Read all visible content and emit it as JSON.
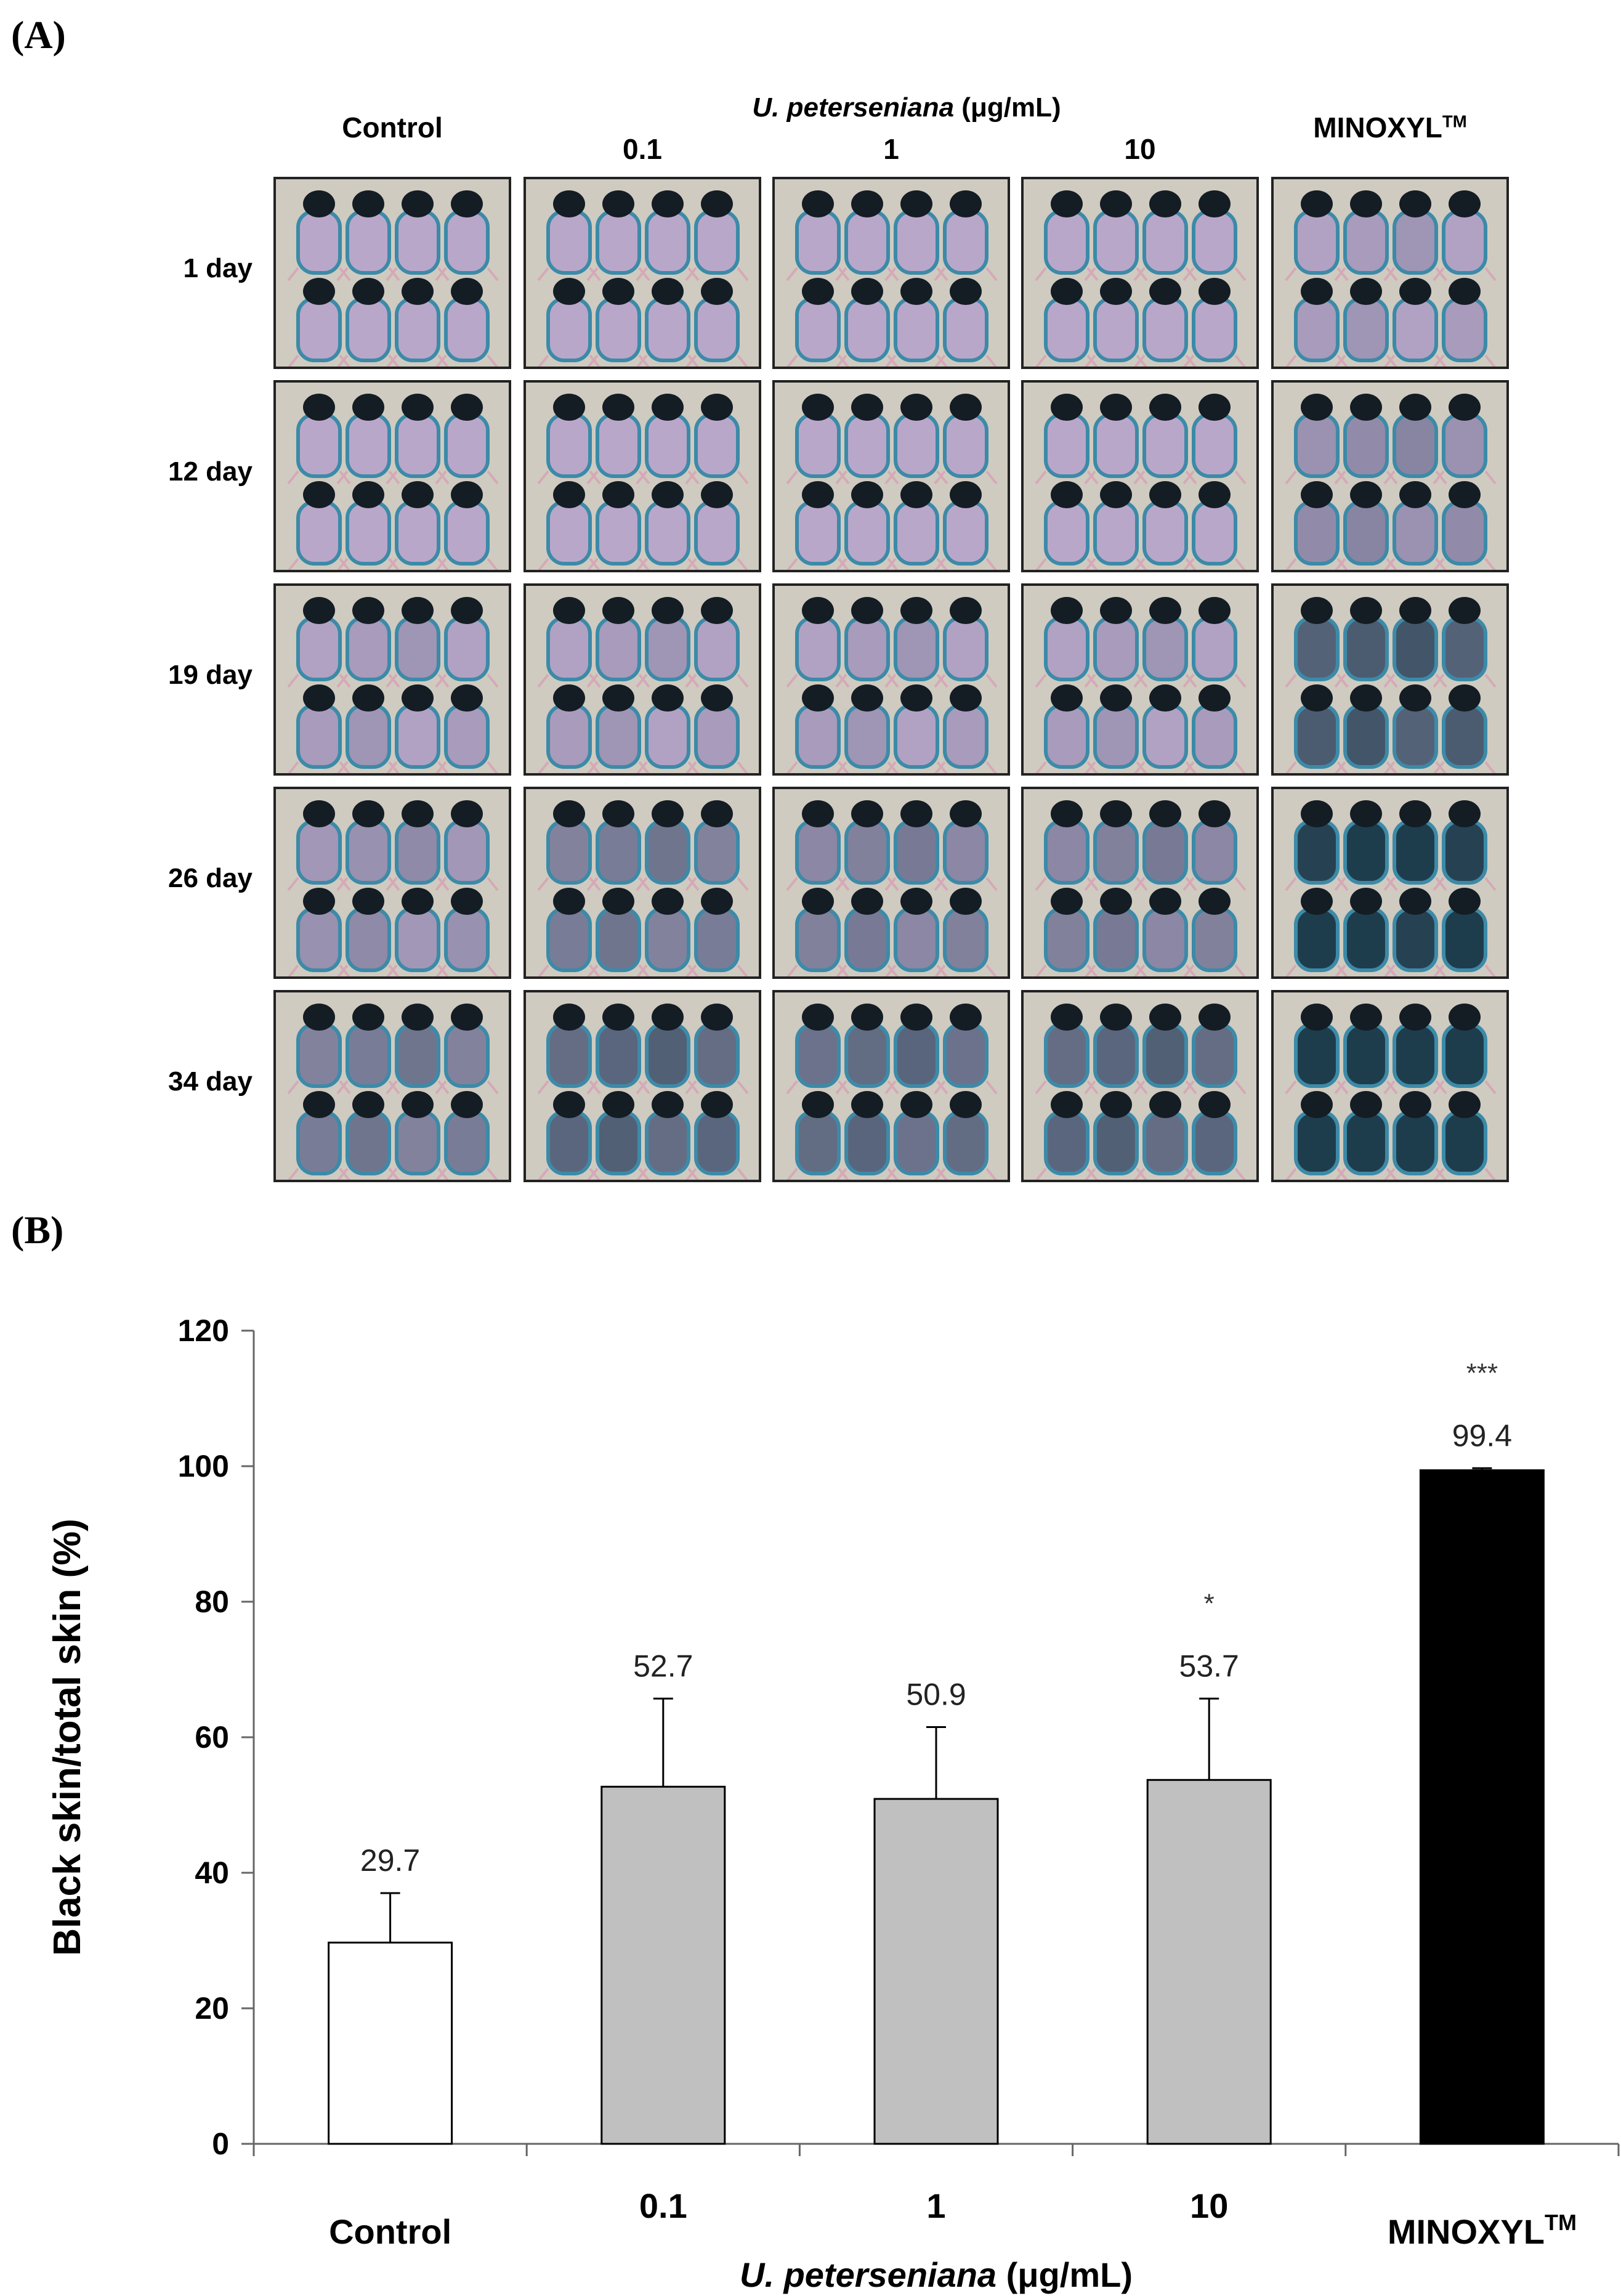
{
  "panel_a_label": "(A)",
  "panel_b_label": "(B)",
  "panel_a": {
    "species_label": "U. peterseniana",
    "species_unit": " (μg/mL)",
    "columns": [
      "Control",
      "0.1",
      "1",
      "10",
      "MINOXYL"
    ],
    "tm_mark": "TM",
    "rows": [
      "1 day",
      "12 day",
      "19 day",
      "26 day",
      "34 day"
    ],
    "darkness": [
      [
        0.0,
        0.0,
        0.0,
        0.0,
        0.05
      ],
      [
        0.0,
        0.0,
        0.0,
        0.0,
        0.2
      ],
      [
        0.05,
        0.05,
        0.05,
        0.05,
        0.65
      ],
      [
        0.15,
        0.35,
        0.3,
        0.3,
        0.95
      ],
      [
        0.35,
        0.55,
        0.5,
        0.55,
        1.0
      ]
    ],
    "colors": {
      "bg": "#cfcbc0",
      "pink": "#b9a7c9",
      "dark": "#1e3d4c",
      "cyan": "#3c8aa8"
    }
  },
  "chart_data": {
    "type": "bar",
    "ylabel": "Black skin/total skin (%)",
    "xlabel_species": "U. peterseniana",
    "xlabel_unit": " (μg/mL)",
    "ylim": [
      0,
      120
    ],
    "yticks": [
      0,
      20,
      40,
      60,
      80,
      100,
      120
    ],
    "categories": [
      "Control",
      "0.1",
      "1",
      "10",
      "MINOXYL"
    ],
    "tm_mark": "TM",
    "values": [
      29.7,
      52.7,
      50.9,
      53.7,
      99.4
    ],
    "value_labels": [
      "29.7",
      "52.7",
      "50.9",
      "53.7",
      "99.4"
    ],
    "errors": [
      7.3,
      13.0,
      10.6,
      12.0,
      0.3
    ],
    "significance": [
      "",
      "",
      "",
      "*",
      "***"
    ],
    "bar_colors": [
      "#ffffff",
      "#c0c0c0",
      "#c0c0c0",
      "#c0c0c0",
      "#000000"
    ],
    "grid": false
  }
}
